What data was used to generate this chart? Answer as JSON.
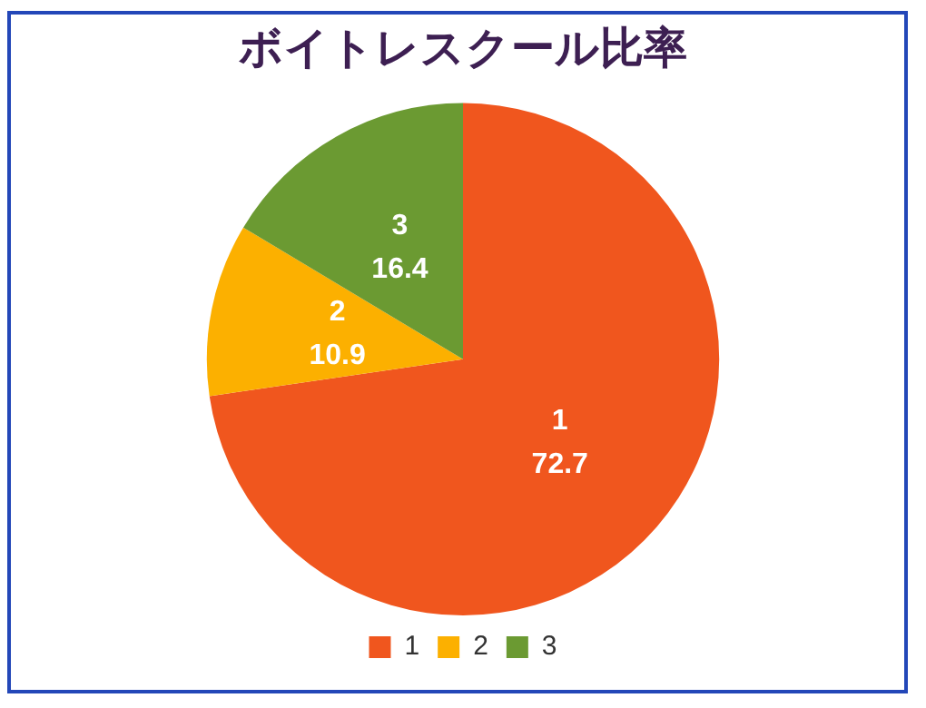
{
  "chart_data": {
    "type": "pie",
    "title": "ボイトレスクール比率",
    "categories": [
      "1",
      "2",
      "3"
    ],
    "values": [
      72.7,
      10.9,
      16.4
    ],
    "colors": [
      "#f0561e",
      "#fcb000",
      "#6b9a32"
    ],
    "data_labels": true,
    "legend": "bottom"
  }
}
